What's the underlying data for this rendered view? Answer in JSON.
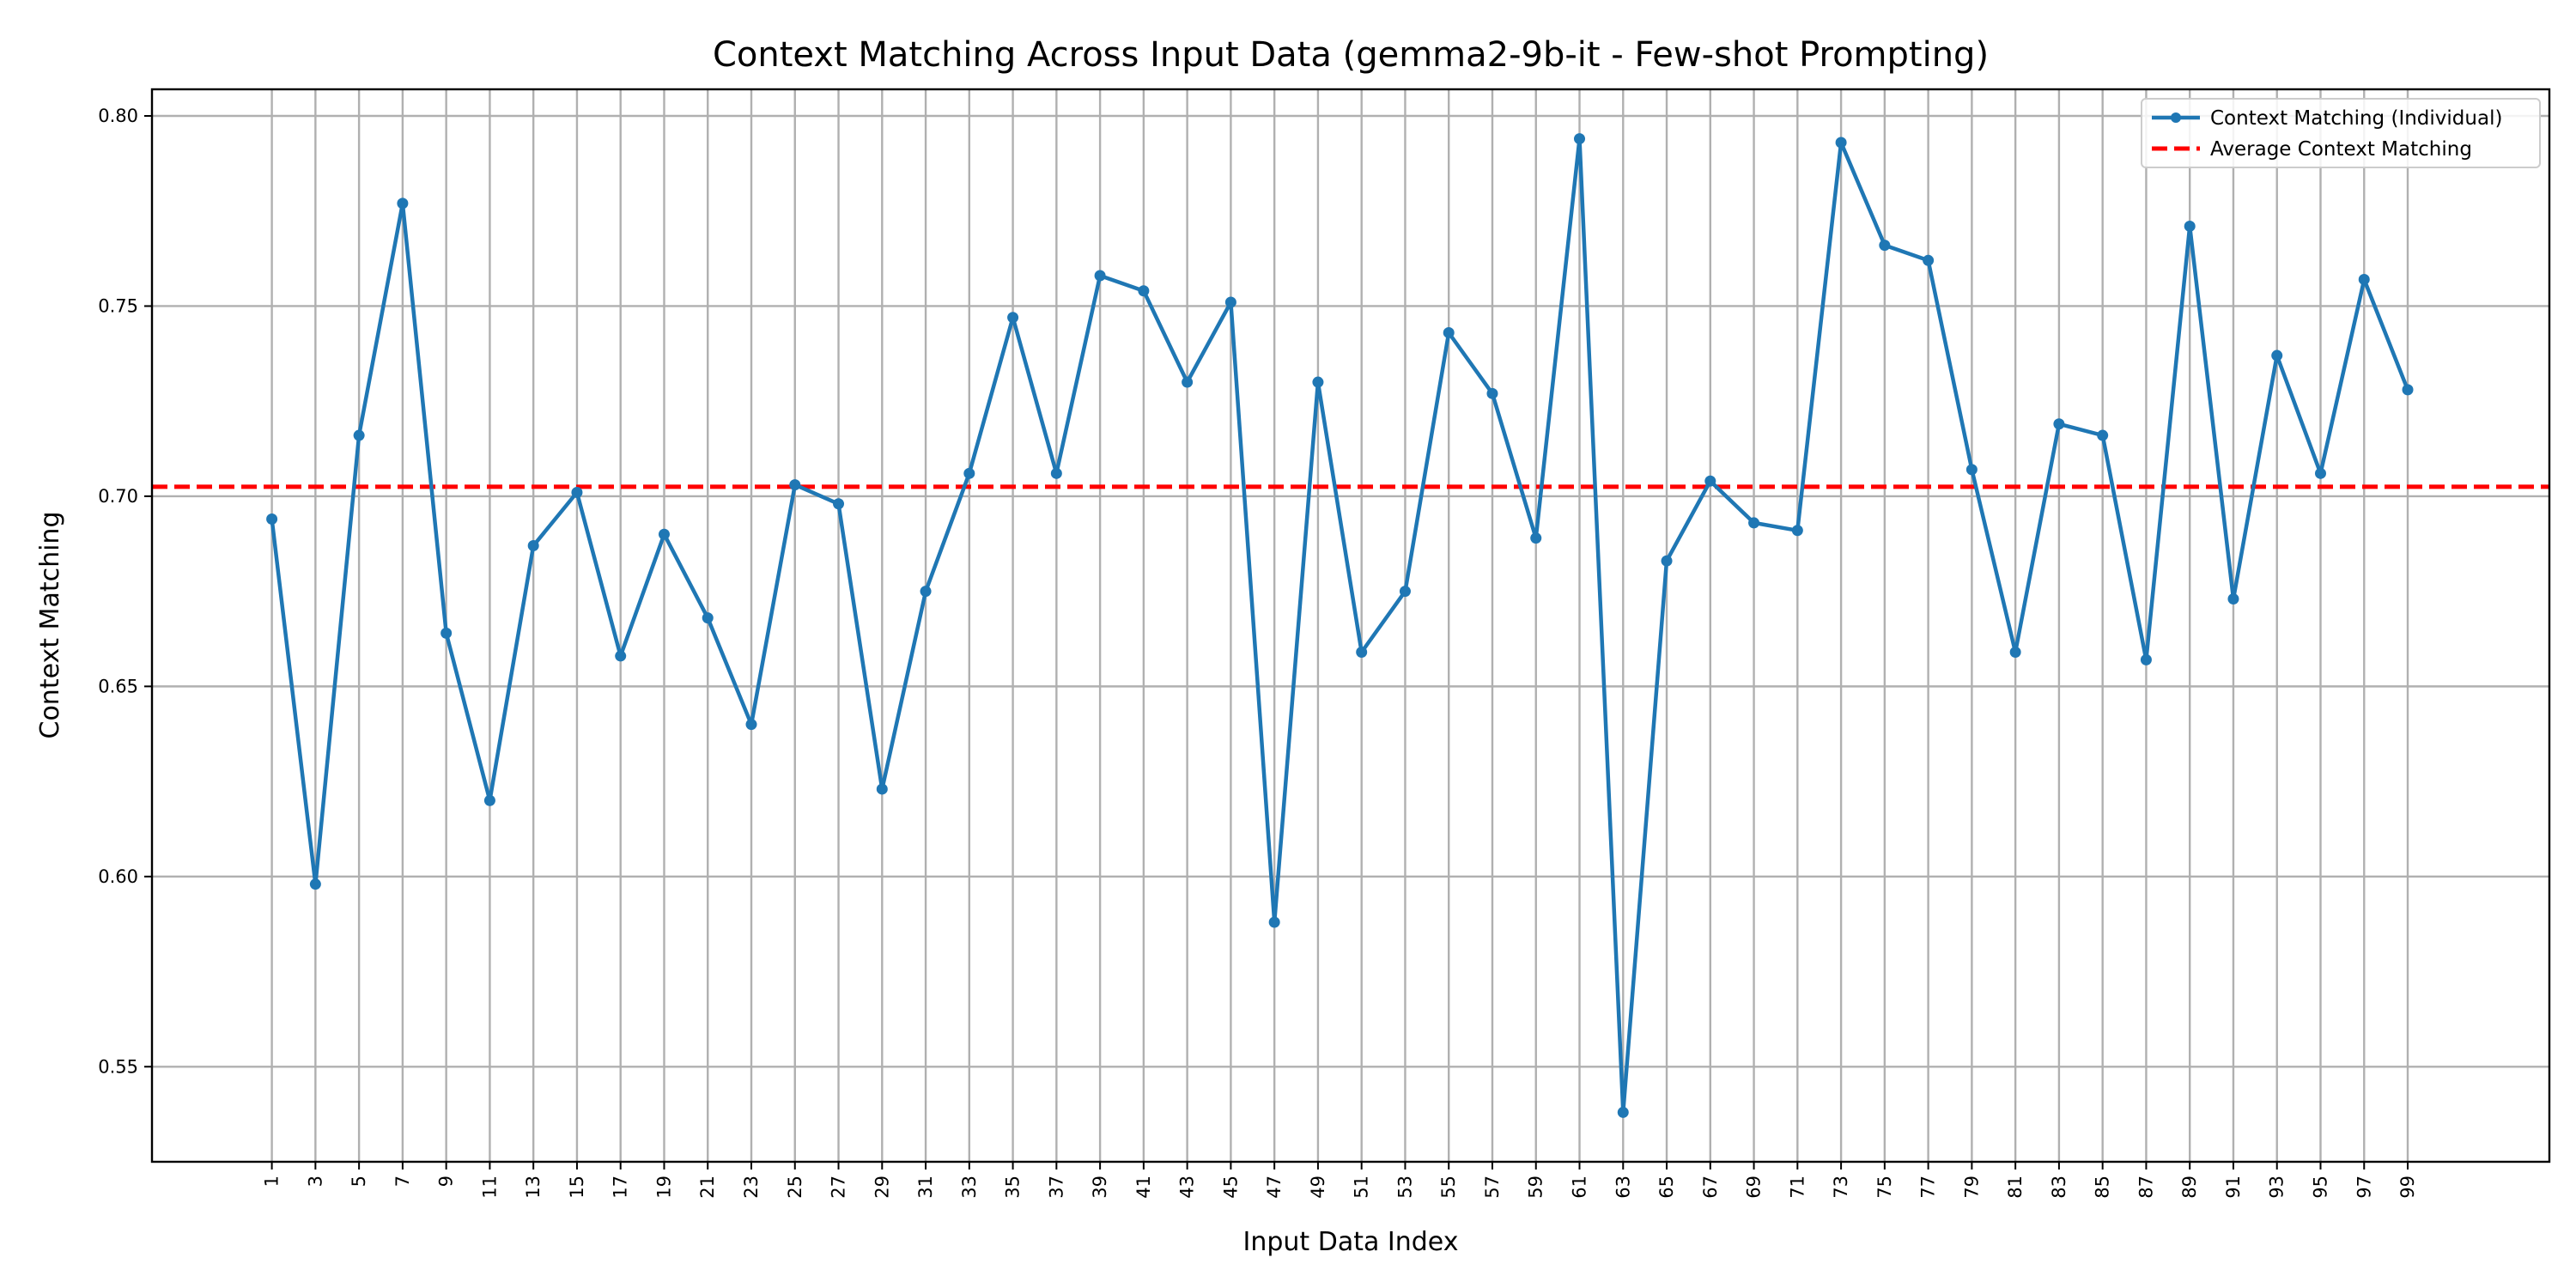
{
  "chart_data": {
    "type": "line",
    "title": "Context Matching Across Input Data (gemma2-9b-it - Few-shot Prompting)",
    "xlabel": "Input Data Index",
    "ylabel": "Context Matching",
    "xlim": [
      -4.5,
      105.5
    ],
    "ylim": [
      0.525,
      0.807
    ],
    "x_ticks": [
      1,
      3,
      5,
      7,
      9,
      11,
      13,
      15,
      17,
      19,
      21,
      23,
      25,
      27,
      29,
      31,
      33,
      35,
      37,
      39,
      41,
      43,
      45,
      47,
      49,
      51,
      53,
      55,
      57,
      59,
      61,
      63,
      65,
      67,
      69,
      71,
      73,
      75,
      77,
      79,
      81,
      83,
      85,
      87,
      89,
      91,
      93,
      95,
      97,
      99
    ],
    "y_ticks": [
      0.55,
      0.6,
      0.65,
      0.7,
      0.75,
      0.8
    ],
    "y_tick_labels": [
      "0.55",
      "0.60",
      "0.65",
      "0.70",
      "0.75",
      "0.80"
    ],
    "grid": true,
    "legend_position": "top-right",
    "series": [
      {
        "name": "Context Matching (Individual)",
        "color": "#1f77b4",
        "style": "solid-line-with-markers",
        "x": [
          1,
          3,
          5,
          7,
          9,
          11,
          13,
          15,
          17,
          19,
          21,
          23,
          25,
          27,
          29,
          31,
          33,
          35,
          37,
          39,
          41,
          43,
          45,
          47,
          49,
          51,
          53,
          55,
          57,
          59,
          61,
          63,
          65,
          67,
          69,
          71,
          73,
          75,
          77,
          79,
          81,
          83,
          85,
          87,
          89,
          91,
          93,
          95,
          97,
          99
        ],
        "values": [
          0.694,
          0.598,
          0.716,
          0.777,
          0.664,
          0.62,
          0.687,
          0.701,
          0.658,
          0.69,
          0.668,
          0.64,
          0.703,
          0.698,
          0.623,
          0.675,
          0.706,
          0.747,
          0.706,
          0.758,
          0.754,
          0.73,
          0.751,
          0.588,
          0.73,
          0.659,
          0.675,
          0.743,
          0.727,
          0.689,
          0.794,
          0.538,
          0.683,
          0.704,
          0.693,
          0.691,
          0.793,
          0.766,
          0.762,
          0.707,
          0.659,
          0.719,
          0.716,
          0.657,
          0.771,
          0.673,
          0.737,
          0.706,
          0.757,
          0.728
        ]
      },
      {
        "name": "Average Context Matching",
        "color": "#ff0000",
        "style": "dashed",
        "value": 0.7025
      }
    ]
  }
}
